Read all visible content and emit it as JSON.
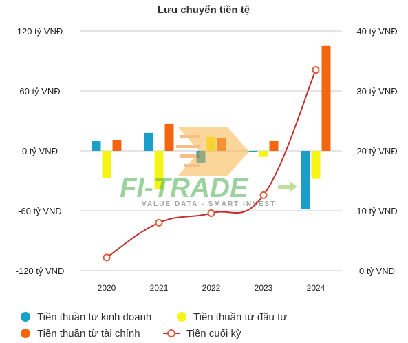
{
  "chart_data": {
    "type": "bar",
    "title": "Lưu chuyển tiền tệ",
    "categories": [
      "2020",
      "2021",
      "2022",
      "2023",
      "2024"
    ],
    "left_axis": {
      "min": -120,
      "max": 120,
      "ticks": [
        120,
        60,
        0,
        -60,
        -120
      ],
      "tick_labels": [
        "120 tỷ VNĐ",
        "60 tỷ VNĐ",
        "0 tỷ VNĐ",
        "-60 tỷ VNĐ",
        "-120 tỷ VNĐ"
      ]
    },
    "right_axis": {
      "min": 0,
      "max": 40,
      "ticks": [
        40,
        30,
        20,
        10,
        0
      ],
      "tick_labels": [
        "40 tỷ VNĐ",
        "30 tỷ VNĐ",
        "20 tỷ VNĐ",
        "10 tỷ VNĐ",
        "0 tỷ VNĐ"
      ]
    },
    "grid": true,
    "legend_position": "bottom",
    "series": [
      {
        "name": "Tiền thuần từ kinh doanh",
        "type": "bar",
        "axis": "left",
        "color": "#1a9fc9",
        "values": [
          10,
          18,
          -12,
          -1,
          -58
        ]
      },
      {
        "name": "Tiền thuần từ đầu tư",
        "type": "bar",
        "axis": "left",
        "color": "#f5f515",
        "values": [
          -27,
          -38,
          14,
          -6,
          -28
        ]
      },
      {
        "name": "Tiền thuần từ tài chính",
        "type": "bar",
        "axis": "left",
        "color": "#f5640f",
        "values": [
          11,
          27,
          13,
          10,
          105
        ]
      },
      {
        "name": "Tiền cuối kỳ",
        "type": "line",
        "axis": "right",
        "color": "#c62f2f",
        "values": [
          2.2,
          8.0,
          9.6,
          12.6,
          33.5
        ]
      }
    ]
  },
  "watermark": {
    "brand": "FI-TRADE",
    "tagline": "VALUE DATA - SMART INVEST"
  }
}
